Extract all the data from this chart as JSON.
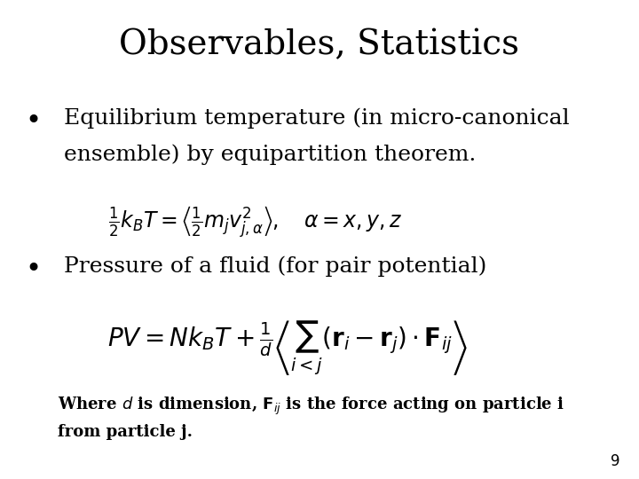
{
  "title": "Observables, Statistics",
  "title_fontsize": 28,
  "title_font": "serif",
  "bg_color": "#ffffff",
  "text_color": "#000000",
  "bullet1_line1": "Equilibrium temperature (in micro-canonical",
  "bullet1_line2": "ensemble) by equipartition theorem.",
  "bullet2": "Pressure of a fluid (for pair potential)",
  "page_num": "9",
  "bullet_fontsize": 18,
  "eq1_fontsize": 17,
  "eq2_fontsize": 17,
  "note_fontsize": 13,
  "page_fontsize": 12
}
